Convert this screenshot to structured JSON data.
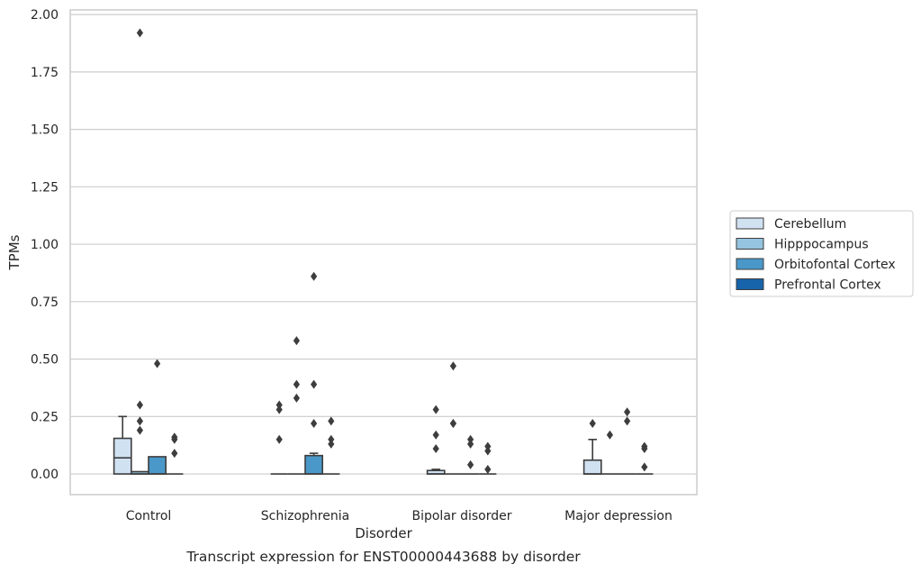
{
  "chart_data": {
    "type": "box",
    "caption": "Transcript expression for ENST00000443688 by disorder",
    "xlabel": "Disorder",
    "ylabel": "TPMs",
    "ylim": [
      -0.09,
      2.02
    ],
    "yticks": [
      0.0,
      0.25,
      0.5,
      0.75,
      1.0,
      1.25,
      1.5,
      1.75,
      2.0
    ],
    "ytick_labels": [
      "0.00",
      "0.25",
      "0.50",
      "0.75",
      "1.00",
      "1.25",
      "1.50",
      "1.75",
      "2.00"
    ],
    "grid": "horizontal",
    "legend_position": "right",
    "categories": [
      "Control",
      "Schizophrenia",
      "Bipolar disorder",
      "Major depression"
    ],
    "series": [
      {
        "name": "Cerebellum",
        "color": "#d0e1f2",
        "boxes": [
          {
            "category": "Control",
            "whisker_low": 0.0,
            "q1": 0.0,
            "median": 0.07,
            "q3": 0.155,
            "whisker_high": 0.25,
            "outliers": []
          },
          {
            "category": "Schizophrenia",
            "whisker_low": 0.0,
            "q1": 0.0,
            "median": 0.0,
            "q3": 0.0,
            "whisker_high": 0.0,
            "outliers": [
              0.15,
              0.28,
              0.3
            ]
          },
          {
            "category": "Bipolar disorder",
            "whisker_low": 0.0,
            "q1": 0.0,
            "median": 0.0,
            "q3": 0.015,
            "whisker_high": 0.02,
            "outliers": [
              0.11,
              0.17,
              0.28
            ]
          },
          {
            "category": "Major depression",
            "whisker_low": 0.0,
            "q1": 0.0,
            "median": 0.0,
            "q3": 0.06,
            "whisker_high": 0.15,
            "outliers": [
              0.22
            ]
          }
        ]
      },
      {
        "name": "Hipppocampus",
        "color": "#94c4df",
        "boxes": [
          {
            "category": "Control",
            "whisker_low": 0.0,
            "q1": 0.0,
            "median": 0.0,
            "q3": 0.01,
            "whisker_high": 0.01,
            "outliers": [
              0.19,
              0.23,
              0.3,
              1.92
            ]
          },
          {
            "category": "Schizophrenia",
            "whisker_low": 0.0,
            "q1": 0.0,
            "median": 0.0,
            "q3": 0.0,
            "whisker_high": 0.0,
            "outliers": [
              0.33,
              0.39,
              0.58
            ]
          },
          {
            "category": "Bipolar disorder",
            "whisker_low": 0.0,
            "q1": 0.0,
            "median": 0.0,
            "q3": 0.0,
            "whisker_high": 0.0,
            "outliers": [
              0.22,
              0.22,
              0.47
            ]
          },
          {
            "category": "Major depression",
            "whisker_low": 0.0,
            "q1": 0.0,
            "median": 0.0,
            "q3": 0.0,
            "whisker_high": 0.0,
            "outliers": [
              0.17
            ]
          }
        ]
      },
      {
        "name": "Orbitofontal Cortex",
        "color": "#4a98c9",
        "boxes": [
          {
            "category": "Control",
            "whisker_low": 0.0,
            "q1": 0.0,
            "median": 0.0,
            "q3": 0.075,
            "whisker_high": 0.075,
            "outliers": [
              0.48
            ]
          },
          {
            "category": "Schizophrenia",
            "whisker_low": 0.0,
            "q1": 0.0,
            "median": 0.0,
            "q3": 0.08,
            "whisker_high": 0.09,
            "outliers": [
              0.22,
              0.39,
              0.86
            ]
          },
          {
            "category": "Bipolar disorder",
            "whisker_low": 0.0,
            "q1": 0.0,
            "median": 0.0,
            "q3": 0.0,
            "whisker_high": 0.0,
            "outliers": [
              0.04,
              0.13,
              0.15
            ]
          },
          {
            "category": "Major depression",
            "whisker_low": 0.0,
            "q1": 0.0,
            "median": 0.0,
            "q3": 0.0,
            "whisker_high": 0.0,
            "outliers": [
              0.23,
              0.27
            ]
          }
        ]
      },
      {
        "name": "Prefrontal Cortex",
        "color": "#1764ab",
        "boxes": [
          {
            "category": "Control",
            "whisker_low": 0.0,
            "q1": 0.0,
            "median": 0.0,
            "q3": 0.0,
            "whisker_high": 0.0,
            "outliers": [
              0.09,
              0.15,
              0.16
            ]
          },
          {
            "category": "Schizophrenia",
            "whisker_low": 0.0,
            "q1": 0.0,
            "median": 0.0,
            "q3": 0.0,
            "whisker_high": 0.0,
            "outliers": [
              0.13,
              0.15,
              0.23
            ]
          },
          {
            "category": "Bipolar disorder",
            "whisker_low": 0.0,
            "q1": 0.0,
            "median": 0.0,
            "q3": 0.0,
            "whisker_high": 0.0,
            "outliers": [
              0.02,
              0.1,
              0.12
            ]
          },
          {
            "category": "Major depression",
            "whisker_low": 0.0,
            "q1": 0.0,
            "median": 0.0,
            "q3": 0.0,
            "whisker_high": 0.0,
            "outliers": [
              0.03,
              0.11,
              0.12
            ]
          }
        ]
      }
    ]
  }
}
